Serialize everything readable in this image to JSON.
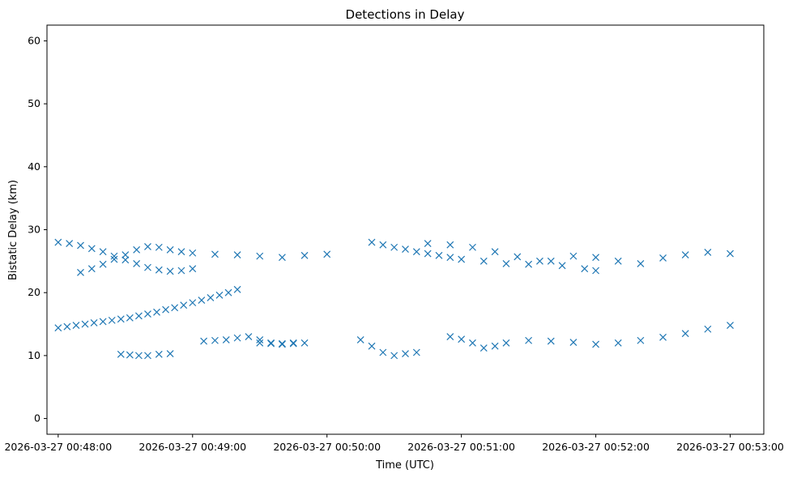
{
  "chart_data": {
    "type": "scatter",
    "title": "Detections in Delay",
    "xlabel": "Time (UTC)",
    "ylabel": "Bistatic Delay (km)",
    "marker": "x",
    "color": "#1f77b4",
    "grid": false,
    "x_axis": {
      "kind": "time",
      "range": [
        "2026-03-27 00:47:55",
        "2026-03-27 00:53:15"
      ],
      "ticks": [
        "2026-03-27 00:48:00",
        "2026-03-27 00:49:00",
        "2026-03-27 00:50:00",
        "2026-03-27 00:51:00",
        "2026-03-27 00:52:00",
        "2026-03-27 00:53:00"
      ]
    },
    "y_axis": {
      "range": [
        -2.5,
        62.5
      ],
      "ticks": [
        "0",
        "10",
        "20",
        "30",
        "40",
        "50",
        "60"
      ]
    },
    "series": [
      {
        "values_note": "track: steady ~14.5 km rising to ~18 km",
        "points": [
          [
            "2026-03-27 00:48:00",
            14.4
          ],
          [
            "2026-03-27 00:48:04",
            14.6
          ],
          [
            "2026-03-27 00:48:08",
            14.8
          ],
          [
            "2026-03-27 00:48:12",
            15.0
          ],
          [
            "2026-03-27 00:48:16",
            15.2
          ],
          [
            "2026-03-27 00:48:20",
            15.4
          ],
          [
            "2026-03-27 00:48:24",
            15.6
          ],
          [
            "2026-03-27 00:48:28",
            15.8
          ],
          [
            "2026-03-27 00:48:32",
            16.0
          ],
          [
            "2026-03-27 00:48:36",
            16.3
          ],
          [
            "2026-03-27 00:48:40",
            16.6
          ],
          [
            "2026-03-27 00:48:44",
            16.9
          ],
          [
            "2026-03-27 00:48:48",
            17.3
          ],
          [
            "2026-03-27 00:48:52",
            17.6
          ],
          [
            "2026-03-27 00:48:56",
            18.0
          ],
          [
            "2026-03-27 00:49:00",
            18.4
          ],
          [
            "2026-03-27 00:49:04",
            18.8
          ],
          [
            "2026-03-27 00:49:08",
            19.2
          ],
          [
            "2026-03-27 00:49:12",
            19.6
          ],
          [
            "2026-03-27 00:49:16",
            20.0
          ],
          [
            "2026-03-27 00:49:20",
            20.5
          ]
        ]
      },
      {
        "values_note": "track: ~28 km falling to ~23 km then rising",
        "points": [
          [
            "2026-03-27 00:48:00",
            28.0
          ],
          [
            "2026-03-27 00:48:05",
            27.8
          ],
          [
            "2026-03-27 00:48:10",
            27.5
          ],
          [
            "2026-03-27 00:48:15",
            27.0
          ],
          [
            "2026-03-27 00:48:20",
            26.5
          ],
          [
            "2026-03-27 00:48:25",
            25.8
          ],
          [
            "2026-03-27 00:48:30",
            25.2
          ],
          [
            "2026-03-27 00:48:35",
            24.6
          ],
          [
            "2026-03-27 00:48:40",
            24.0
          ],
          [
            "2026-03-27 00:48:45",
            23.6
          ],
          [
            "2026-03-27 00:48:50",
            23.4
          ],
          [
            "2026-03-27 00:48:55",
            23.5
          ],
          [
            "2026-03-27 00:49:00",
            23.8
          ]
        ]
      },
      {
        "values_note": "track: ~23 km rising to ~27 km then flat ~26 km",
        "points": [
          [
            "2026-03-27 00:48:10",
            23.2
          ],
          [
            "2026-03-27 00:48:15",
            23.8
          ],
          [
            "2026-03-27 00:48:20",
            24.5
          ],
          [
            "2026-03-27 00:48:25",
            25.3
          ],
          [
            "2026-03-27 00:48:30",
            26.0
          ],
          [
            "2026-03-27 00:48:35",
            26.8
          ],
          [
            "2026-03-27 00:48:40",
            27.3
          ],
          [
            "2026-03-27 00:48:45",
            27.2
          ],
          [
            "2026-03-27 00:48:50",
            26.8
          ],
          [
            "2026-03-27 00:48:55",
            26.5
          ],
          [
            "2026-03-27 00:49:00",
            26.3
          ],
          [
            "2026-03-27 00:49:10",
            26.1
          ],
          [
            "2026-03-27 00:49:20",
            26.0
          ],
          [
            "2026-03-27 00:49:30",
            25.8
          ],
          [
            "2026-03-27 00:49:40",
            25.6
          ],
          [
            "2026-03-27 00:49:50",
            25.9
          ],
          [
            "2026-03-27 00:50:00",
            26.1
          ]
        ]
      },
      {
        "values_note": "track: flat ~12 km mid section",
        "points": [
          [
            "2026-03-27 00:49:05",
            12.3
          ],
          [
            "2026-03-27 00:49:10",
            12.4
          ],
          [
            "2026-03-27 00:49:15",
            12.5
          ],
          [
            "2026-03-27 00:49:20",
            12.8
          ],
          [
            "2026-03-27 00:49:25",
            13.0
          ],
          [
            "2026-03-27 00:49:30",
            12.5
          ],
          [
            "2026-03-27 00:49:35",
            12.0
          ],
          [
            "2026-03-27 00:49:40",
            11.9
          ],
          [
            "2026-03-27 00:49:45",
            12.0
          ]
        ]
      },
      {
        "values_note": "track: ~26 km drifting through 00:50-00:52",
        "points": [
          [
            "2026-03-27 00:50:20",
            28.0
          ],
          [
            "2026-03-27 00:50:25",
            27.6
          ],
          [
            "2026-03-27 00:50:30",
            27.2
          ],
          [
            "2026-03-27 00:50:35",
            26.9
          ],
          [
            "2026-03-27 00:50:40",
            26.5
          ],
          [
            "2026-03-27 00:50:45",
            26.2
          ],
          [
            "2026-03-27 00:50:50",
            25.9
          ],
          [
            "2026-03-27 00:50:55",
            25.6
          ],
          [
            "2026-03-27 00:51:00",
            25.3
          ],
          [
            "2026-03-27 00:51:10",
            25.0
          ],
          [
            "2026-03-27 00:51:20",
            24.6
          ],
          [
            "2026-03-27 00:51:30",
            24.5
          ],
          [
            "2026-03-27 00:51:40",
            25.0
          ],
          [
            "2026-03-27 00:51:50",
            25.8
          ],
          [
            "2026-03-27 00:52:00",
            25.6
          ],
          [
            "2026-03-27 00:52:10",
            25.0
          ],
          [
            "2026-03-27 00:52:20",
            24.6
          ],
          [
            "2026-03-27 00:52:30",
            25.5
          ],
          [
            "2026-03-27 00:52:40",
            26.0
          ],
          [
            "2026-03-27 00:52:50",
            26.4
          ],
          [
            "2026-03-27 00:53:00",
            26.2
          ]
        ]
      },
      {
        "values_note": "track: ~27.5 km descending to ~23 km",
        "points": [
          [
            "2026-03-27 00:50:45",
            27.8
          ],
          [
            "2026-03-27 00:50:55",
            27.6
          ],
          [
            "2026-03-27 00:51:05",
            27.2
          ],
          [
            "2026-03-27 00:51:15",
            26.5
          ],
          [
            "2026-03-27 00:51:25",
            25.7
          ],
          [
            "2026-03-27 00:51:35",
            25.0
          ],
          [
            "2026-03-27 00:51:45",
            24.3
          ],
          [
            "2026-03-27 00:51:55",
            23.8
          ],
          [
            "2026-03-27 00:52:00",
            23.5
          ]
        ]
      },
      {
        "values_note": "track: ~13 km dipping to ~11 km then rising to ~15 km",
        "points": [
          [
            "2026-03-27 00:50:55",
            13.0
          ],
          [
            "2026-03-27 00:51:00",
            12.6
          ],
          [
            "2026-03-27 00:51:05",
            12.0
          ],
          [
            "2026-03-27 00:51:10",
            11.2
          ],
          [
            "2026-03-27 00:51:15",
            11.5
          ],
          [
            "2026-03-27 00:51:20",
            12.0
          ],
          [
            "2026-03-27 00:51:30",
            12.4
          ],
          [
            "2026-03-27 00:51:40",
            12.3
          ],
          [
            "2026-03-27 00:51:50",
            12.1
          ],
          [
            "2026-03-27 00:52:00",
            11.8
          ],
          [
            "2026-03-27 00:52:10",
            12.0
          ],
          [
            "2026-03-27 00:52:20",
            12.4
          ],
          [
            "2026-03-27 00:52:30",
            12.9
          ],
          [
            "2026-03-27 00:52:40",
            13.5
          ],
          [
            "2026-03-27 00:52:50",
            14.2
          ],
          [
            "2026-03-27 00:53:00",
            14.8
          ]
        ]
      },
      {
        "values_note": "track: ~10 km early section",
        "points": [
          [
            "2026-03-27 00:48:28",
            10.2
          ],
          [
            "2026-03-27 00:48:32",
            10.1
          ],
          [
            "2026-03-27 00:48:36",
            10.0
          ],
          [
            "2026-03-27 00:48:40",
            10.0
          ],
          [
            "2026-03-27 00:48:45",
            10.2
          ],
          [
            "2026-03-27 00:48:50",
            10.3
          ]
        ]
      },
      {
        "values_note": "track: ~12 km 00:49:30-00:50:00",
        "points": [
          [
            "2026-03-27 00:49:30",
            12.0
          ],
          [
            "2026-03-27 00:49:35",
            11.9
          ],
          [
            "2026-03-27 00:49:40",
            11.8
          ],
          [
            "2026-03-27 00:49:45",
            11.9
          ],
          [
            "2026-03-27 00:49:50",
            12.0
          ]
        ]
      },
      {
        "values_note": "track: ~11 km 00:50:15-00:50:40",
        "points": [
          [
            "2026-03-27 00:50:15",
            12.5
          ],
          [
            "2026-03-27 00:50:20",
            11.5
          ],
          [
            "2026-03-27 00:50:25",
            10.5
          ],
          [
            "2026-03-27 00:50:30",
            10.0
          ],
          [
            "2026-03-27 00:50:35",
            10.3
          ],
          [
            "2026-03-27 00:50:40",
            10.5
          ]
        ]
      }
    ]
  }
}
